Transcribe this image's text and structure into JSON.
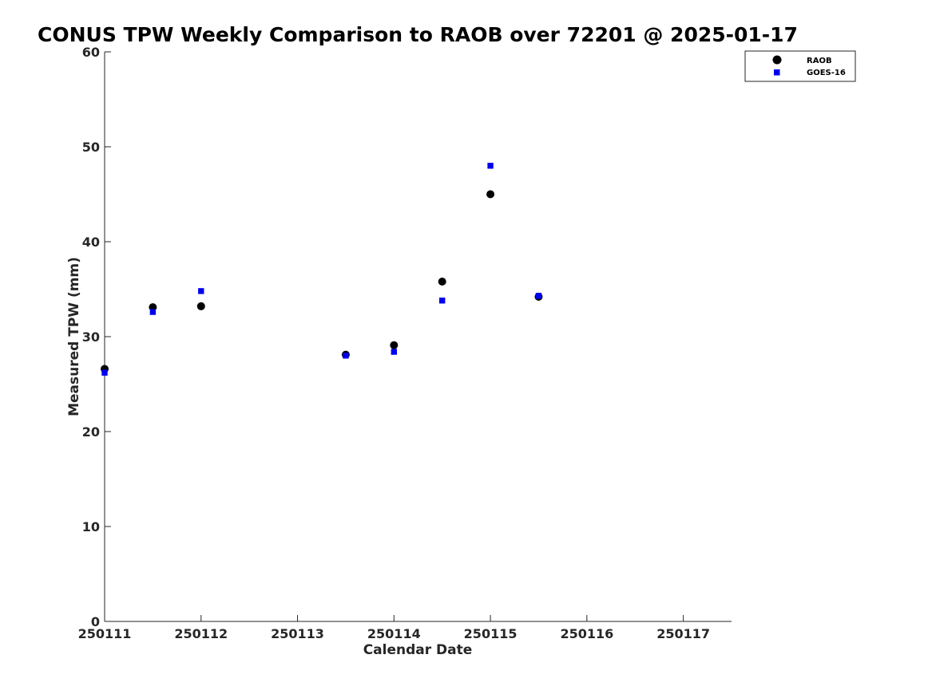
{
  "chart_data": {
    "type": "scatter",
    "title": "CONUS TPW Weekly Comparison to RAOB over 72201 @ 2025-01-17",
    "xlabel": "Calendar Date",
    "ylabel": "Measured TPW (mm)",
    "xlim": [
      0,
      6.5
    ],
    "ylim": [
      0,
      60
    ],
    "x_ticks": [
      {
        "value": 0,
        "label": "250111"
      },
      {
        "value": 1,
        "label": "250112"
      },
      {
        "value": 2,
        "label": "250113"
      },
      {
        "value": 3,
        "label": "250114"
      },
      {
        "value": 4,
        "label": "250115"
      },
      {
        "value": 5,
        "label": "250116"
      },
      {
        "value": 6,
        "label": "250117"
      }
    ],
    "y_ticks": [
      {
        "value": 0,
        "label": "0"
      },
      {
        "value": 10,
        "label": "10"
      },
      {
        "value": 20,
        "label": "20"
      },
      {
        "value": 30,
        "label": "30"
      },
      {
        "value": 40,
        "label": "40"
      },
      {
        "value": 50,
        "label": "50"
      },
      {
        "value": 60,
        "label": "60"
      }
    ],
    "grid": false,
    "legend_position": "top-right outside",
    "series": [
      {
        "name": "RAOB",
        "marker": "circle",
        "color": "#000000",
        "points": [
          {
            "x": 0.0,
            "y": 26.6
          },
          {
            "x": 0.5,
            "y": 33.1
          },
          {
            "x": 1.0,
            "y": 33.2
          },
          {
            "x": 2.5,
            "y": 28.1
          },
          {
            "x": 3.0,
            "y": 29.1
          },
          {
            "x": 3.5,
            "y": 35.8
          },
          {
            "x": 4.0,
            "y": 45.0
          },
          {
            "x": 4.5,
            "y": 34.2
          }
        ]
      },
      {
        "name": "GOES-16",
        "marker": "square",
        "color": "#0000ee",
        "points": [
          {
            "x": 0.0,
            "y": 26.2
          },
          {
            "x": 0.5,
            "y": 32.6
          },
          {
            "x": 1.0,
            "y": 34.8
          },
          {
            "x": 2.5,
            "y": 28.0
          },
          {
            "x": 3.0,
            "y": 28.4
          },
          {
            "x": 3.5,
            "y": 33.8
          },
          {
            "x": 4.0,
            "y": 48.0
          },
          {
            "x": 4.5,
            "y": 34.3
          }
        ]
      }
    ]
  }
}
